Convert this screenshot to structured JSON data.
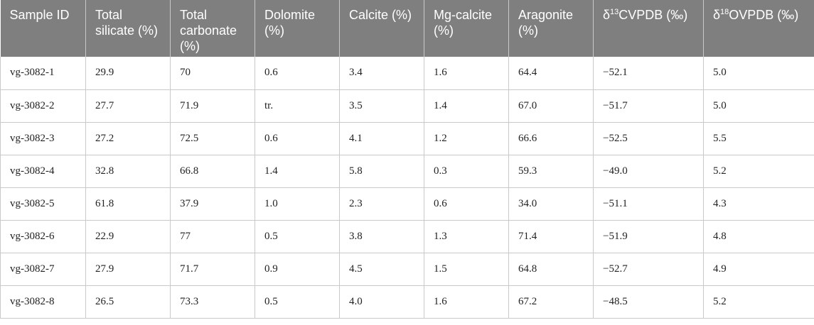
{
  "table": {
    "headers": {
      "sample_id": "Sample ID",
      "total_silicate": "Total silicate (%)",
      "total_carbonate": "Total carbonate (%)",
      "dolomite": "Dolomite (%)",
      "calcite": "Calcite (%)",
      "mg_calcite": "Mg-calcite (%)",
      "aragonite": "Aragonite (%)",
      "d13c": {
        "prefix": "δ",
        "sup": "13",
        "rest": "CVPDB (‰)"
      },
      "d18o": {
        "prefix": "δ",
        "sup": "18",
        "rest": "OVPDB (‰)"
      }
    },
    "rows": [
      {
        "sample_id": "vg-3082-1",
        "total_silicate": "29.9",
        "total_carbonate": "70",
        "dolomite": "0.6",
        "calcite": "3.4",
        "mg_calcite": "1.6",
        "aragonite": "64.4",
        "d13c": "−52.1",
        "d18o": "5.0"
      },
      {
        "sample_id": "vg-3082-2",
        "total_silicate": "27.7",
        "total_carbonate": "71.9",
        "dolomite": "tr.",
        "calcite": "3.5",
        "mg_calcite": "1.4",
        "aragonite": "67.0",
        "d13c": "−51.7",
        "d18o": "5.0"
      },
      {
        "sample_id": "vg-3082-3",
        "total_silicate": "27.2",
        "total_carbonate": "72.5",
        "dolomite": "0.6",
        "calcite": "4.1",
        "mg_calcite": "1.2",
        "aragonite": "66.6",
        "d13c": "−52.5",
        "d18o": "5.5"
      },
      {
        "sample_id": "vg-3082-4",
        "total_silicate": "32.8",
        "total_carbonate": "66.8",
        "dolomite": "1.4",
        "calcite": "5.8",
        "mg_calcite": "0.3",
        "aragonite": "59.3",
        "d13c": "−49.0",
        "d18o": "5.2"
      },
      {
        "sample_id": "vg-3082-5",
        "total_silicate": "61.8",
        "total_carbonate": "37.9",
        "dolomite": "1.0",
        "calcite": "2.3",
        "mg_calcite": "0.6",
        "aragonite": "34.0",
        "d13c": "−51.1",
        "d18o": "4.3"
      },
      {
        "sample_id": "vg-3082-6",
        "total_silicate": "22.9",
        "total_carbonate": "77",
        "dolomite": "0.5",
        "calcite": "3.8",
        "mg_calcite": "1.3",
        "aragonite": "71.4",
        "d13c": "−51.9",
        "d18o": "4.8"
      },
      {
        "sample_id": "vg-3082-7",
        "total_silicate": "27.9",
        "total_carbonate": "71.7",
        "dolomite": "0.9",
        "calcite": "4.5",
        "mg_calcite": "1.5",
        "aragonite": "64.8",
        "d13c": "−52.7",
        "d18o": "4.9"
      },
      {
        "sample_id": "vg-3082-8",
        "total_silicate": "26.5",
        "total_carbonate": "73.3",
        "dolomite": "0.5",
        "calcite": "4.0",
        "mg_calcite": "1.6",
        "aragonite": "67.2",
        "d13c": "−48.5",
        "d18o": "5.2"
      }
    ]
  }
}
